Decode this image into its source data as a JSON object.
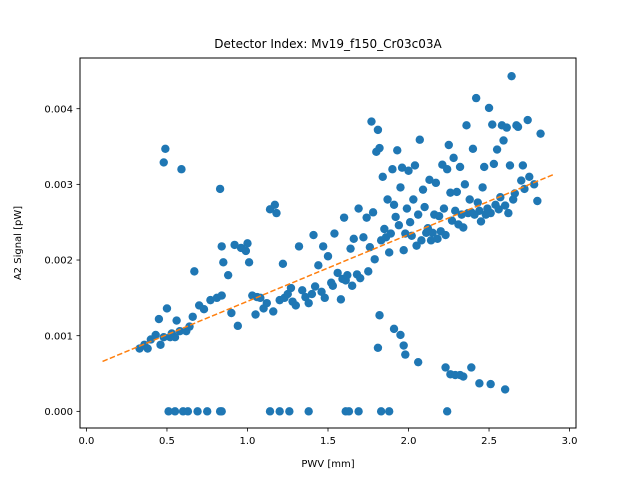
{
  "chart_data": {
    "type": "scatter",
    "title": "Detector Index: Mv19_f150_Cr03c03A",
    "xlabel": "PWV [mm]",
    "ylabel": "A2 Signal [pW]",
    "xlim": [
      -0.04,
      3.04
    ],
    "ylim": [
      -0.00022,
      0.00467
    ],
    "x_ticks": [
      0.0,
      0.5,
      1.0,
      1.5,
      2.0,
      2.5,
      3.0
    ],
    "x_tick_labels": [
      "0.0",
      "0.5",
      "1.0",
      "1.5",
      "2.0",
      "2.5",
      "3.0"
    ],
    "y_ticks": [
      0.0,
      0.001,
      0.002,
      0.003,
      0.004
    ],
    "y_tick_labels": [
      "0.000",
      "0.001",
      "0.002",
      "0.003",
      "0.004"
    ],
    "grid": false,
    "colors": {
      "points": "#1f77b4",
      "fit": "#ff7f0e",
      "axes": "#000000"
    },
    "series": [
      {
        "name": "measurements",
        "marker": "circle",
        "points": [
          [
            0.33,
            0.00083
          ],
          [
            0.36,
            0.00088
          ],
          [
            0.38,
            0.00083
          ],
          [
            0.4,
            0.00095
          ],
          [
            0.43,
            0.00101
          ],
          [
            0.45,
            0.00122
          ],
          [
            0.46,
            0.00088
          ],
          [
            0.48,
            0.00098
          ],
          [
            0.48,
            0.00329
          ],
          [
            0.49,
            0.00347
          ],
          [
            0.5,
            0.00136
          ],
          [
            0.52,
            0.00098
          ],
          [
            0.53,
            0.00103
          ],
          [
            0.55,
            0.00098
          ],
          [
            0.56,
            0.0012
          ],
          [
            0.58,
            0.00106
          ],
          [
            0.59,
            0.0032
          ],
          [
            0.62,
            0.00106
          ],
          [
            0.64,
            0.00112
          ],
          [
            0.66,
            0.00125
          ],
          [
            0.67,
            0.00185
          ],
          [
            0.7,
            0.0014
          ],
          [
            0.73,
            0.00135
          ],
          [
            0.77,
            0.00147
          ],
          [
            0.81,
            0.0015
          ],
          [
            0.83,
            0.00294
          ],
          [
            0.84,
            0.00218
          ],
          [
            0.84,
            0.00153
          ],
          [
            0.85,
            0.00197
          ],
          [
            0.88,
            0.0018
          ],
          [
            0.9,
            0.0013
          ],
          [
            0.92,
            0.0022
          ],
          [
            0.94,
            0.00113
          ],
          [
            0.96,
            0.00216
          ],
          [
            0.99,
            0.00212
          ],
          [
            1.0,
            0.00222
          ],
          [
            1.01,
            0.00197
          ],
          [
            1.03,
            0.00153
          ],
          [
            1.05,
            0.00128
          ],
          [
            1.06,
            0.00151
          ],
          [
            1.08,
            0.0015
          ],
          [
            1.1,
            0.00136
          ],
          [
            1.12,
            0.00143
          ],
          [
            1.14,
            0.00267
          ],
          [
            1.16,
            0.00132
          ],
          [
            1.17,
            0.00273
          ],
          [
            1.18,
            0.00262
          ],
          [
            1.2,
            0.00147
          ],
          [
            1.22,
            0.00195
          ],
          [
            1.23,
            0.0015
          ],
          [
            1.25,
            0.00155
          ],
          [
            1.27,
            0.00163
          ],
          [
            1.28,
            0.00145
          ],
          [
            1.3,
            0.0014
          ],
          [
            1.32,
            0.00218
          ],
          [
            1.34,
            0.0016
          ],
          [
            1.36,
            0.00151
          ],
          [
            1.38,
            0.00143
          ],
          [
            1.4,
            0.00155
          ],
          [
            1.41,
            0.00233
          ],
          [
            1.42,
            0.00165
          ],
          [
            1.44,
            0.00193
          ],
          [
            1.46,
            0.00158
          ],
          [
            1.47,
            0.00218
          ],
          [
            1.48,
            0.0015
          ],
          [
            1.5,
            0.00205
          ],
          [
            1.52,
            0.0017
          ],
          [
            1.53,
            0.00166
          ],
          [
            1.54,
            0.00235
          ],
          [
            1.56,
            0.00183
          ],
          [
            1.58,
            0.00148
          ],
          [
            1.59,
            0.00175
          ],
          [
            1.6,
            0.00256
          ],
          [
            1.61,
            0.00173
          ],
          [
            1.62,
            0.0018
          ],
          [
            1.64,
            0.00215
          ],
          [
            1.65,
            0.00166
          ],
          [
            1.66,
            0.00228
          ],
          [
            1.68,
            0.00181
          ],
          [
            1.69,
            0.00268
          ],
          [
            1.7,
            0.00176
          ],
          [
            1.72,
            0.0023
          ],
          [
            1.74,
            0.00256
          ],
          [
            1.75,
            0.00185
          ],
          [
            1.76,
            0.00217
          ],
          [
            1.77,
            0.00383
          ],
          [
            1.78,
            0.00263
          ],
          [
            1.79,
            0.00201
          ],
          [
            1.8,
            0.00343
          ],
          [
            1.81,
            0.00372
          ],
          [
            1.82,
            0.00348
          ],
          [
            1.83,
            0.00226
          ],
          [
            1.84,
            0.0031
          ],
          [
            1.85,
            0.00241
          ],
          [
            1.86,
            0.0023
          ],
          [
            1.87,
            0.0028
          ],
          [
            1.88,
            0.0021
          ],
          [
            1.89,
            0.00235
          ],
          [
            1.9,
            0.0032
          ],
          [
            1.91,
            0.00273
          ],
          [
            1.92,
            0.00257
          ],
          [
            1.93,
            0.00345
          ],
          [
            1.94,
            0.00246
          ],
          [
            1.95,
            0.00296
          ],
          [
            1.96,
            0.00322
          ],
          [
            1.97,
            0.00213
          ],
          [
            1.98,
            0.00235
          ],
          [
            1.99,
            0.00268
          ],
          [
            2.0,
            0.00318
          ],
          [
            2.01,
            0.0025
          ],
          [
            2.02,
            0.00232
          ],
          [
            2.03,
            0.0028
          ],
          [
            2.04,
            0.00325
          ],
          [
            2.05,
            0.00219
          ],
          [
            2.06,
            0.0026
          ],
          [
            2.07,
            0.00359
          ],
          [
            2.08,
            0.00226
          ],
          [
            2.09,
            0.00293
          ],
          [
            2.1,
            0.0027
          ],
          [
            2.11,
            0.00236
          ],
          [
            2.12,
            0.00242
          ],
          [
            2.13,
            0.00306
          ],
          [
            2.14,
            0.00226
          ],
          [
            2.15,
            0.00236
          ],
          [
            2.16,
            0.0026
          ],
          [
            2.17,
            0.00302
          ],
          [
            2.18,
            0.00228
          ],
          [
            2.19,
            0.00258
          ],
          [
            2.2,
            0.00238
          ],
          [
            2.21,
            0.00326
          ],
          [
            2.22,
            0.00268
          ],
          [
            2.23,
            0.00233
          ],
          [
            2.24,
            0.0032
          ],
          [
            2.25,
            0.00352
          ],
          [
            2.26,
            0.00289
          ],
          [
            2.27,
            0.00252
          ],
          [
            2.28,
            0.00335
          ],
          [
            2.29,
            0.00265
          ],
          [
            2.3,
            0.0029
          ],
          [
            2.31,
            0.00247
          ],
          [
            2.32,
            0.00323
          ],
          [
            2.33,
            0.0026
          ],
          [
            2.34,
            0.00243
          ],
          [
            2.35,
            0.003
          ],
          [
            2.36,
            0.00378
          ],
          [
            2.37,
            0.00262
          ],
          [
            2.38,
            0.0028
          ],
          [
            2.39,
            0.00263
          ],
          [
            2.4,
            0.00347
          ],
          [
            2.41,
            0.0026
          ],
          [
            2.42,
            0.00414
          ],
          [
            2.43,
            0.00276
          ],
          [
            2.44,
            0.00265
          ],
          [
            2.45,
            0.00251
          ],
          [
            2.46,
            0.00296
          ],
          [
            2.47,
            0.00323
          ],
          [
            2.48,
            0.0026
          ],
          [
            2.49,
            0.00268
          ],
          [
            2.5,
            0.00401
          ],
          [
            2.51,
            0.00262
          ],
          [
            2.52,
            0.00379
          ],
          [
            2.53,
            0.00327
          ],
          [
            2.54,
            0.00273
          ],
          [
            2.55,
            0.00346
          ],
          [
            2.56,
            0.00267
          ],
          [
            2.57,
            0.00283
          ],
          [
            2.58,
            0.00378
          ],
          [
            2.59,
            0.00358
          ],
          [
            2.6,
            0.00272
          ],
          [
            2.61,
            0.00375
          ],
          [
            2.62,
            0.00262
          ],
          [
            2.63,
            0.00325
          ],
          [
            2.64,
            0.00443
          ],
          [
            2.65,
            0.0028
          ],
          [
            2.66,
            0.00288
          ],
          [
            2.67,
            0.00378
          ],
          [
            2.68,
            0.00376
          ],
          [
            2.7,
            0.00305
          ],
          [
            2.71,
            0.00325
          ],
          [
            2.72,
            0.00294
          ],
          [
            2.74,
            0.00385
          ],
          [
            2.75,
            0.0031
          ],
          [
            2.78,
            0.003
          ],
          [
            2.8,
            0.00278
          ],
          [
            2.82,
            0.00367
          ],
          [
            1.82,
            0.00127
          ],
          [
            1.81,
            0.00084
          ],
          [
            1.91,
            0.00109
          ],
          [
            1.95,
            0.00101
          ],
          [
            1.97,
            0.00087
          ],
          [
            1.98,
            0.00075
          ],
          [
            2.06,
            0.00065
          ],
          [
            2.23,
            0.00058
          ],
          [
            2.26,
            0.00049
          ],
          [
            2.29,
            0.00048
          ],
          [
            2.32,
            0.00048
          ],
          [
            2.34,
            0.00046
          ],
          [
            2.39,
            0.00058
          ],
          [
            2.44,
            0.00037
          ],
          [
            2.51,
            0.00036
          ],
          [
            2.6,
            0.00029
          ],
          [
            0.51,
            0.0
          ],
          [
            0.55,
            0.0
          ],
          [
            0.6,
            0.0
          ],
          [
            0.63,
            0.0
          ],
          [
            0.69,
            0.0
          ],
          [
            0.75,
            0.0
          ],
          [
            0.83,
            0.0
          ],
          [
            0.84,
            0.0
          ],
          [
            1.14,
            0.0
          ],
          [
            1.2,
            0.0
          ],
          [
            1.26,
            0.0
          ],
          [
            1.38,
            0.0
          ],
          [
            1.61,
            0.0
          ],
          [
            1.63,
            0.0
          ],
          [
            1.69,
            0.0
          ],
          [
            1.83,
            0.0
          ],
          [
            1.88,
            0.0
          ],
          [
            2.24,
            0.0
          ]
        ]
      },
      {
        "name": "linear fit",
        "style": "dashed",
        "points": [
          [
            0.1,
            0.00066
          ],
          [
            2.9,
            0.00313
          ]
        ]
      }
    ]
  }
}
